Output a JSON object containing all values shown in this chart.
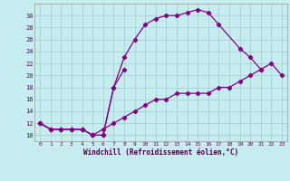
{
  "xlabel": "Windchill (Refroidissement éolien,°C)",
  "bg_color": "#c5ecee",
  "grid_color": "#aad4d8",
  "line_color": "#880088",
  "xlim": [
    -0.5,
    23.5
  ],
  "ylim": [
    9.0,
    32.0
  ],
  "xticks": [
    0,
    1,
    2,
    3,
    4,
    5,
    6,
    7,
    8,
    9,
    10,
    11,
    12,
    13,
    14,
    15,
    16,
    17,
    18,
    19,
    20,
    21,
    22,
    23
  ],
  "yticks": [
    10,
    12,
    14,
    16,
    18,
    20,
    22,
    24,
    26,
    28,
    30
  ],
  "curve1_x": [
    0,
    1,
    2,
    3,
    4,
    5,
    6,
    7,
    8,
    9,
    10,
    11,
    12,
    13,
    14,
    15,
    16,
    17,
    18,
    19,
    20,
    21,
    22,
    23
  ],
  "curve1_y": [
    12,
    11,
    11,
    11,
    11,
    10,
    11,
    12,
    13,
    14,
    15,
    16,
    16,
    17,
    17,
    17,
    17,
    18,
    18,
    19,
    20,
    21,
    22,
    20
  ],
  "curve2_x": [
    0,
    1,
    2,
    3,
    4,
    5,
    6,
    7,
    8
  ],
  "curve2_y": [
    12,
    11,
    11,
    11,
    11,
    10,
    10,
    18,
    21
  ],
  "curve3_x": [
    0,
    1,
    2,
    3,
    4,
    5,
    6,
    7,
    8,
    9,
    10,
    11,
    12,
    13,
    14,
    15,
    16,
    17,
    19,
    20,
    21
  ],
  "curve3_y": [
    12,
    11,
    11,
    11,
    11,
    10,
    10,
    18,
    23,
    26,
    28.5,
    29.5,
    30,
    30,
    30.5,
    31,
    30.5,
    28.5,
    24.5,
    23,
    21
  ]
}
